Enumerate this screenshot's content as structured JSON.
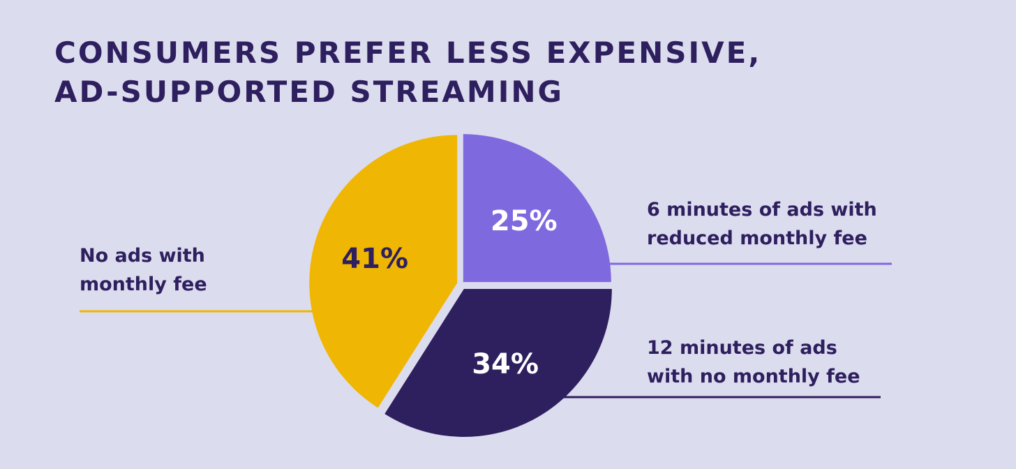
{
  "title_lines": [
    "Consumers prefer less expensive,",
    "ad-supported streaming"
  ],
  "chart_data": {
    "type": "pie",
    "title": "Consumers prefer less expensive, ad-supported streaming",
    "slices": [
      {
        "id": "reduced-fee",
        "value": 25,
        "value_label": "25%",
        "label_lines": [
          "6 minutes of ads with",
          "reduced monthly fee"
        ],
        "color": "#7f69de",
        "value_color": "#ffffff"
      },
      {
        "id": "no-fee",
        "value": 34,
        "value_label": "34%",
        "label_lines": [
          "12 minutes of ads",
          "with no monthly fee"
        ],
        "color": "#2e1f5e",
        "value_color": "#ffffff"
      },
      {
        "id": "no-ads",
        "value": 41,
        "value_label": "41%",
        "label_lines": [
          "No ads with",
          "monthly fee"
        ],
        "color": "#efb604",
        "value_color": "#2e1f5e"
      }
    ]
  }
}
